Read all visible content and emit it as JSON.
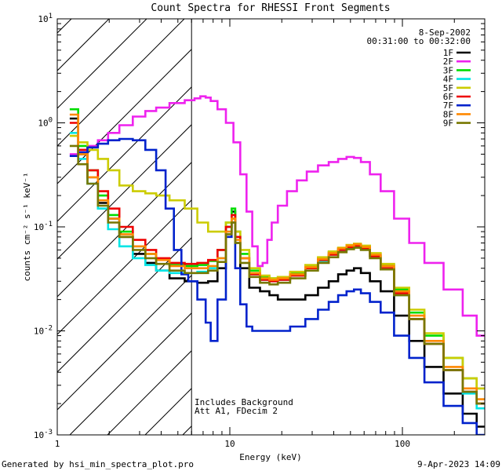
{
  "chart_data": {
    "type": "line",
    "title": "Count Spectra for RHESSI Front Segments",
    "xlabel": "Energy (keV)",
    "ylabel": "counts cm⁻² s⁻¹ keV⁻¹",
    "xscale": "log",
    "yscale": "log",
    "xlim": [
      1,
      300
    ],
    "ylim": [
      0.001,
      10
    ],
    "x_tick_labels": [
      {
        "value": 1,
        "label": "1"
      },
      {
        "value": 10,
        "label": "10"
      },
      {
        "value": 100,
        "label": "100"
      }
    ],
    "y_tick_labels": [
      {
        "value": 10,
        "base": "10",
        "exp": "1"
      },
      {
        "value": 1,
        "base": "10",
        "exp": "0"
      },
      {
        "value": 0.1,
        "base": "10",
        "exp": "-1"
      },
      {
        "value": 0.01,
        "base": "10",
        "exp": "-2"
      },
      {
        "value": 0.001,
        "base": "10",
        "exp": "-3"
      }
    ],
    "hatched_region": {
      "x_min": 1,
      "x_max": 6
    },
    "annotations": {
      "date": "8-Sep-2002",
      "time_range": "00:31:00 to 00:32:00",
      "note1": "Includes Background",
      "note2": "Att A1, FDecim 2",
      "generated_by": "Generated by hsi_min_spectra_plot.pro",
      "footer_date": "9-Apr-2023 14:09"
    },
    "series": [
      {
        "name": "1F",
        "color": "#000000",
        "x": [
          1.25,
          1.4,
          1.6,
          1.85,
          2.1,
          2.5,
          3.0,
          3.5,
          4.0,
          5.0,
          6.0,
          7.0,
          8.0,
          9.0,
          10.0,
          10.5,
          11.0,
          12.0,
          14.0,
          16.0,
          18.0,
          20.0,
          25.0,
          30.0,
          35.0,
          40.0,
          45.0,
          50.0,
          55.0,
          60.0,
          70.0,
          80.0,
          100.0,
          120.0,
          150.0,
          200.0,
          250.0,
          290.0
        ],
        "y": [
          1.1,
          0.5,
          0.3,
          0.17,
          0.12,
          0.08,
          0.055,
          0.045,
          0.038,
          0.032,
          0.03,
          0.029,
          0.03,
          0.04,
          0.1,
          0.14,
          0.07,
          0.04,
          0.026,
          0.024,
          0.022,
          0.02,
          0.02,
          0.022,
          0.026,
          0.03,
          0.035,
          0.038,
          0.04,
          0.036,
          0.03,
          0.024,
          0.014,
          0.008,
          0.0045,
          0.0025,
          0.0016,
          0.0012
        ]
      },
      {
        "name": "2F",
        "color": "#ee22ee",
        "x": [
          1.25,
          1.4,
          1.6,
          1.85,
          2.1,
          2.5,
          3.0,
          3.5,
          4.0,
          5.0,
          6.0,
          6.5,
          7.0,
          7.5,
          8.0,
          9.0,
          10.0,
          11.0,
          12.0,
          13.0,
          14.0,
          15.0,
          16.0,
          17.0,
          18.0,
          20.0,
          23.0,
          26.0,
          30.0,
          35.0,
          40.0,
          45.0,
          50.0,
          55.0,
          60.0,
          70.0,
          80.0,
          100.0,
          120.0,
          150.0,
          200.0,
          250.0,
          290.0
        ],
        "y": [
          0.5,
          0.55,
          0.6,
          0.68,
          0.8,
          0.95,
          1.15,
          1.3,
          1.4,
          1.55,
          1.65,
          1.72,
          1.8,
          1.75,
          1.62,
          1.35,
          1.0,
          0.65,
          0.32,
          0.14,
          0.065,
          0.042,
          0.045,
          0.075,
          0.11,
          0.16,
          0.22,
          0.28,
          0.34,
          0.39,
          0.42,
          0.45,
          0.47,
          0.46,
          0.42,
          0.32,
          0.22,
          0.12,
          0.07,
          0.045,
          0.025,
          0.014,
          0.009
        ]
      },
      {
        "name": "3F",
        "color": "#00dd00",
        "x": [
          1.25,
          1.4,
          1.6,
          1.85,
          2.1,
          2.5,
          3.0,
          3.5,
          4.0,
          5.0,
          6.0,
          7.0,
          8.0,
          9.0,
          10.0,
          10.5,
          11.0,
          12.0,
          14.0,
          16.0,
          18.0,
          20.0,
          25.0,
          30.0,
          35.0,
          40.0,
          45.0,
          50.0,
          55.0,
          60.0,
          70.0,
          80.0,
          100.0,
          120.0,
          150.0,
          200.0,
          250.0,
          290.0
        ],
        "y": [
          1.35,
          0.6,
          0.35,
          0.2,
          0.13,
          0.09,
          0.065,
          0.055,
          0.048,
          0.043,
          0.042,
          0.043,
          0.047,
          0.06,
          0.11,
          0.15,
          0.09,
          0.055,
          0.038,
          0.033,
          0.032,
          0.033,
          0.036,
          0.042,
          0.05,
          0.057,
          0.062,
          0.066,
          0.068,
          0.065,
          0.055,
          0.043,
          0.025,
          0.015,
          0.009,
          0.0055,
          0.0035,
          0.0028
        ]
      },
      {
        "name": "4F",
        "color": "#00e5e5",
        "x": [
          1.25,
          1.4,
          1.6,
          1.85,
          2.1,
          2.5,
          3.0,
          3.5,
          4.0,
          5.0,
          6.0,
          7.0,
          8.0,
          9.0,
          10.0,
          10.5,
          11.0,
          12.0,
          14.0,
          16.0,
          18.0,
          20.0,
          25.0,
          30.0,
          35.0,
          40.0,
          45.0,
          50.0,
          55.0,
          60.0,
          70.0,
          80.0,
          100.0,
          120.0,
          150.0,
          200.0,
          250.0,
          290.0
        ],
        "y": [
          0.8,
          0.45,
          0.26,
          0.15,
          0.095,
          0.065,
          0.05,
          0.043,
          0.038,
          0.036,
          0.036,
          0.037,
          0.04,
          0.05,
          0.09,
          0.12,
          0.08,
          0.05,
          0.035,
          0.031,
          0.03,
          0.031,
          0.034,
          0.04,
          0.047,
          0.054,
          0.058,
          0.062,
          0.064,
          0.061,
          0.052,
          0.04,
          0.022,
          0.013,
          0.0075,
          0.0042,
          0.0025,
          0.0018
        ]
      },
      {
        "name": "5F",
        "color": "#cccc00",
        "x": [
          1.25,
          1.4,
          1.6,
          1.85,
          2.1,
          2.5,
          3.0,
          3.5,
          4.0,
          5.0,
          6.0,
          7.0,
          8.0,
          9.0,
          10.0,
          10.5,
          11.0,
          12.0,
          14.0,
          16.0,
          18.0,
          20.0,
          25.0,
          30.0,
          35.0,
          40.0,
          45.0,
          50.0,
          55.0,
          60.0,
          70.0,
          80.0,
          100.0,
          120.0,
          150.0,
          200.0,
          250.0,
          290.0
        ],
        "y": [
          0.75,
          0.65,
          0.55,
          0.45,
          0.35,
          0.25,
          0.22,
          0.21,
          0.2,
          0.18,
          0.15,
          0.11,
          0.09,
          0.09,
          0.11,
          0.12,
          0.09,
          0.06,
          0.04,
          0.034,
          0.032,
          0.033,
          0.037,
          0.043,
          0.051,
          0.058,
          0.063,
          0.067,
          0.069,
          0.066,
          0.056,
          0.044,
          0.026,
          0.016,
          0.0095,
          0.0055,
          0.0035,
          0.0028
        ]
      },
      {
        "name": "6F",
        "color": "#ee0000",
        "x": [
          1.25,
          1.4,
          1.6,
          1.85,
          2.1,
          2.5,
          3.0,
          3.5,
          4.0,
          5.0,
          6.0,
          7.0,
          8.0,
          9.0,
          10.0,
          10.5,
          11.0,
          12.0,
          14.0,
          16.0,
          18.0,
          20.0,
          25.0,
          30.0,
          35.0,
          40.0,
          45.0,
          50.0,
          55.0,
          60.0,
          70.0,
          80.0,
          100.0,
          120.0,
          150.0,
          200.0,
          250.0,
          290.0
        ],
        "y": [
          1.0,
          0.55,
          0.35,
          0.22,
          0.15,
          0.1,
          0.075,
          0.06,
          0.05,
          0.045,
          0.044,
          0.045,
          0.048,
          0.06,
          0.1,
          0.13,
          0.08,
          0.05,
          0.035,
          0.031,
          0.03,
          0.031,
          0.034,
          0.04,
          0.048,
          0.054,
          0.06,
          0.064,
          0.066,
          0.062,
          0.052,
          0.04,
          0.023,
          0.013,
          0.0075,
          0.0042,
          0.0026,
          0.002
        ]
      },
      {
        "name": "7F",
        "color": "#0022cc",
        "x": [
          1.25,
          1.4,
          1.6,
          1.85,
          2.1,
          2.5,
          3.0,
          3.5,
          4.0,
          4.5,
          5.0,
          5.5,
          6.0,
          7.0,
          7.5,
          8.0,
          9.0,
          10.0,
          10.5,
          11.0,
          12.0,
          13.0,
          14.0,
          16.0,
          18.0,
          20.0,
          25.0,
          30.0,
          35.0,
          40.0,
          45.0,
          50.0,
          55.0,
          60.0,
          70.0,
          80.0,
          100.0,
          120.0,
          150.0,
          200.0,
          250.0,
          290.0
        ],
        "y": [
          0.48,
          0.52,
          0.58,
          0.63,
          0.68,
          0.7,
          0.68,
          0.55,
          0.35,
          0.15,
          0.06,
          0.035,
          0.03,
          0.02,
          0.012,
          0.008,
          0.02,
          0.08,
          0.11,
          0.04,
          0.018,
          0.011,
          0.01,
          0.01,
          0.01,
          0.01,
          0.011,
          0.013,
          0.016,
          0.019,
          0.022,
          0.024,
          0.025,
          0.023,
          0.019,
          0.015,
          0.009,
          0.0055,
          0.0032,
          0.0019,
          0.0013,
          0.001
        ]
      },
      {
        "name": "8F",
        "color": "#ff8800",
        "x": [
          1.25,
          1.4,
          1.6,
          1.85,
          2.1,
          2.5,
          3.0,
          3.5,
          4.0,
          5.0,
          6.0,
          7.0,
          8.0,
          9.0,
          10.0,
          10.5,
          11.0,
          12.0,
          14.0,
          16.0,
          18.0,
          20.0,
          25.0,
          30.0,
          35.0,
          40.0,
          45.0,
          50.0,
          55.0,
          60.0,
          70.0,
          80.0,
          100.0,
          120.0,
          150.0,
          200.0,
          250.0,
          290.0
        ],
        "y": [
          1.2,
          0.5,
          0.3,
          0.18,
          0.12,
          0.085,
          0.065,
          0.055,
          0.048,
          0.042,
          0.04,
          0.04,
          0.042,
          0.05,
          0.09,
          0.12,
          0.075,
          0.05,
          0.036,
          0.032,
          0.031,
          0.032,
          0.035,
          0.041,
          0.049,
          0.056,
          0.062,
          0.066,
          0.068,
          0.064,
          0.054,
          0.042,
          0.024,
          0.014,
          0.008,
          0.0045,
          0.0028,
          0.0022
        ]
      },
      {
        "name": "9F",
        "color": "#777700",
        "x": [
          1.25,
          1.4,
          1.6,
          1.85,
          2.1,
          2.5,
          3.0,
          3.5,
          4.0,
          5.0,
          6.0,
          7.0,
          8.0,
          9.0,
          10.0,
          10.5,
          11.0,
          12.0,
          14.0,
          16.0,
          18.0,
          20.0,
          25.0,
          30.0,
          35.0,
          40.0,
          45.0,
          50.0,
          55.0,
          60.0,
          70.0,
          80.0,
          100.0,
          120.0,
          150.0,
          200.0,
          250.0,
          290.0
        ],
        "y": [
          0.6,
          0.4,
          0.26,
          0.16,
          0.11,
          0.08,
          0.06,
          0.05,
          0.044,
          0.038,
          0.036,
          0.036,
          0.038,
          0.046,
          0.085,
          0.11,
          0.07,
          0.045,
          0.033,
          0.029,
          0.028,
          0.029,
          0.032,
          0.038,
          0.045,
          0.051,
          0.057,
          0.061,
          0.063,
          0.06,
          0.05,
          0.039,
          0.022,
          0.013,
          0.0075,
          0.0042,
          0.0026,
          0.002
        ]
      }
    ]
  }
}
